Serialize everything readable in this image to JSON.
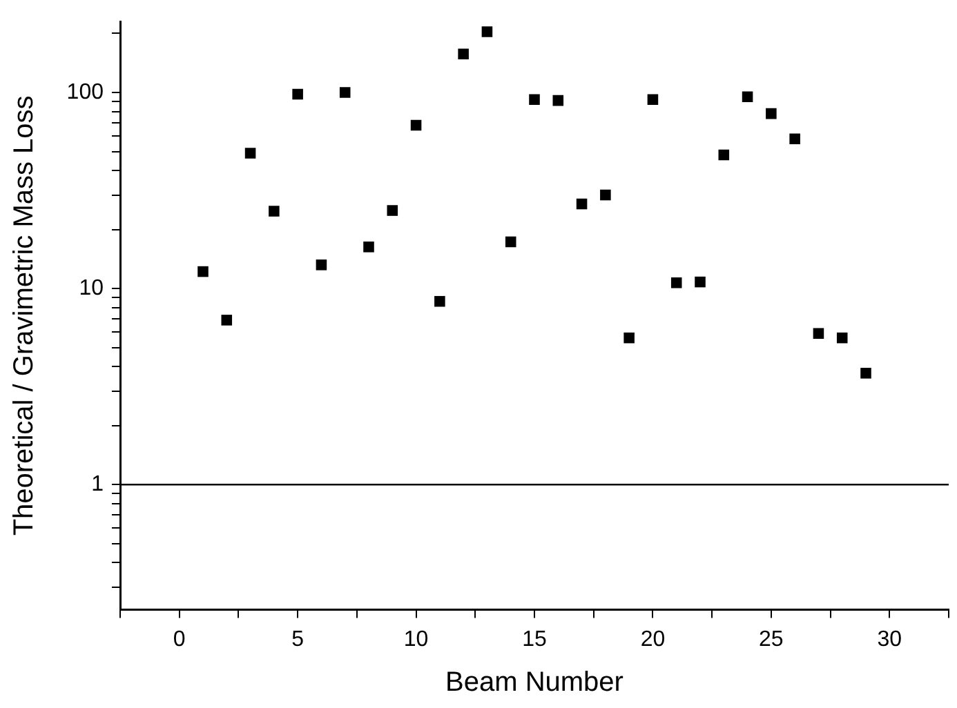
{
  "chart_data": {
    "type": "scatter",
    "xlabel": "Beam Number",
    "ylabel": "Theoretical / Gravimetric Mass Loss",
    "x": [
      1,
      2,
      3,
      4,
      5,
      6,
      7,
      8,
      9,
      10,
      11,
      12,
      13,
      14,
      15,
      16,
      17,
      18,
      19,
      20,
      21,
      22,
      23,
      24,
      25,
      26,
      27,
      28,
      29
    ],
    "series": [
      {
        "color": "#000000",
        "values": [
          12.2,
          6.9,
          49,
          24.8,
          98,
          13.2,
          100,
          16.3,
          25,
          68,
          8.6,
          157,
          204,
          17.3,
          92,
          91,
          27,
          30,
          5.6,
          92,
          10.7,
          10.8,
          48,
          95,
          78,
          58,
          5.9,
          5.6,
          3.7
        ]
      }
    ],
    "log": "y",
    "xlim": [
      -2.5,
      32.5
    ],
    "xticks": [
      {
        "value": -2.5,
        "label": null
      },
      0,
      {
        "value": 2.5,
        "label": null
      },
      5,
      {
        "value": 7.5,
        "label": null
      },
      10,
      {
        "value": 12.5,
        "label": null
      },
      15,
      {
        "value": 17.5,
        "label": null
      },
      20,
      {
        "value": 22.5,
        "label": null
      },
      25,
      {
        "value": 27.5,
        "label": null
      },
      30,
      {
        "value": 32.5,
        "label": null
      }
    ],
    "ylim": [
      0.23,
      230
    ],
    "yticks": [
      {
        "value": 0.3,
        "label": null
      },
      {
        "value": 0.4,
        "label": null
      },
      {
        "value": 0.5,
        "label": null
      },
      {
        "value": 0.6,
        "label": null
      },
      {
        "value": 0.7,
        "label": null
      },
      {
        "value": 0.8,
        "label": null
      },
      {
        "value": 0.9,
        "label": null
      },
      1,
      {
        "value": 2,
        "label": null
      },
      {
        "value": 3,
        "label": null
      },
      {
        "value": 4,
        "label": null
      },
      {
        "value": 5,
        "label": null
      },
      {
        "value": 6,
        "label": null
      },
      {
        "value": 7,
        "label": null
      },
      {
        "value": 8,
        "label": null
      },
      {
        "value": 9,
        "label": null
      },
      10,
      {
        "value": 20,
        "label": null
      },
      {
        "value": 30,
        "label": null
      },
      {
        "value": 40,
        "label": null
      },
      {
        "value": 50,
        "label": null
      },
      {
        "value": 60,
        "label": null
      },
      {
        "value": 70,
        "label": null
      },
      {
        "value": 80,
        "label": null
      },
      {
        "value": 90,
        "label": null
      },
      100,
      {
        "value": 200,
        "label": null
      }
    ],
    "ref_lines": [
      {
        "axis": "y",
        "value": 1,
        "color": "#000000"
      }
    ],
    "grid": false,
    "legend": false,
    "marker": "square"
  }
}
